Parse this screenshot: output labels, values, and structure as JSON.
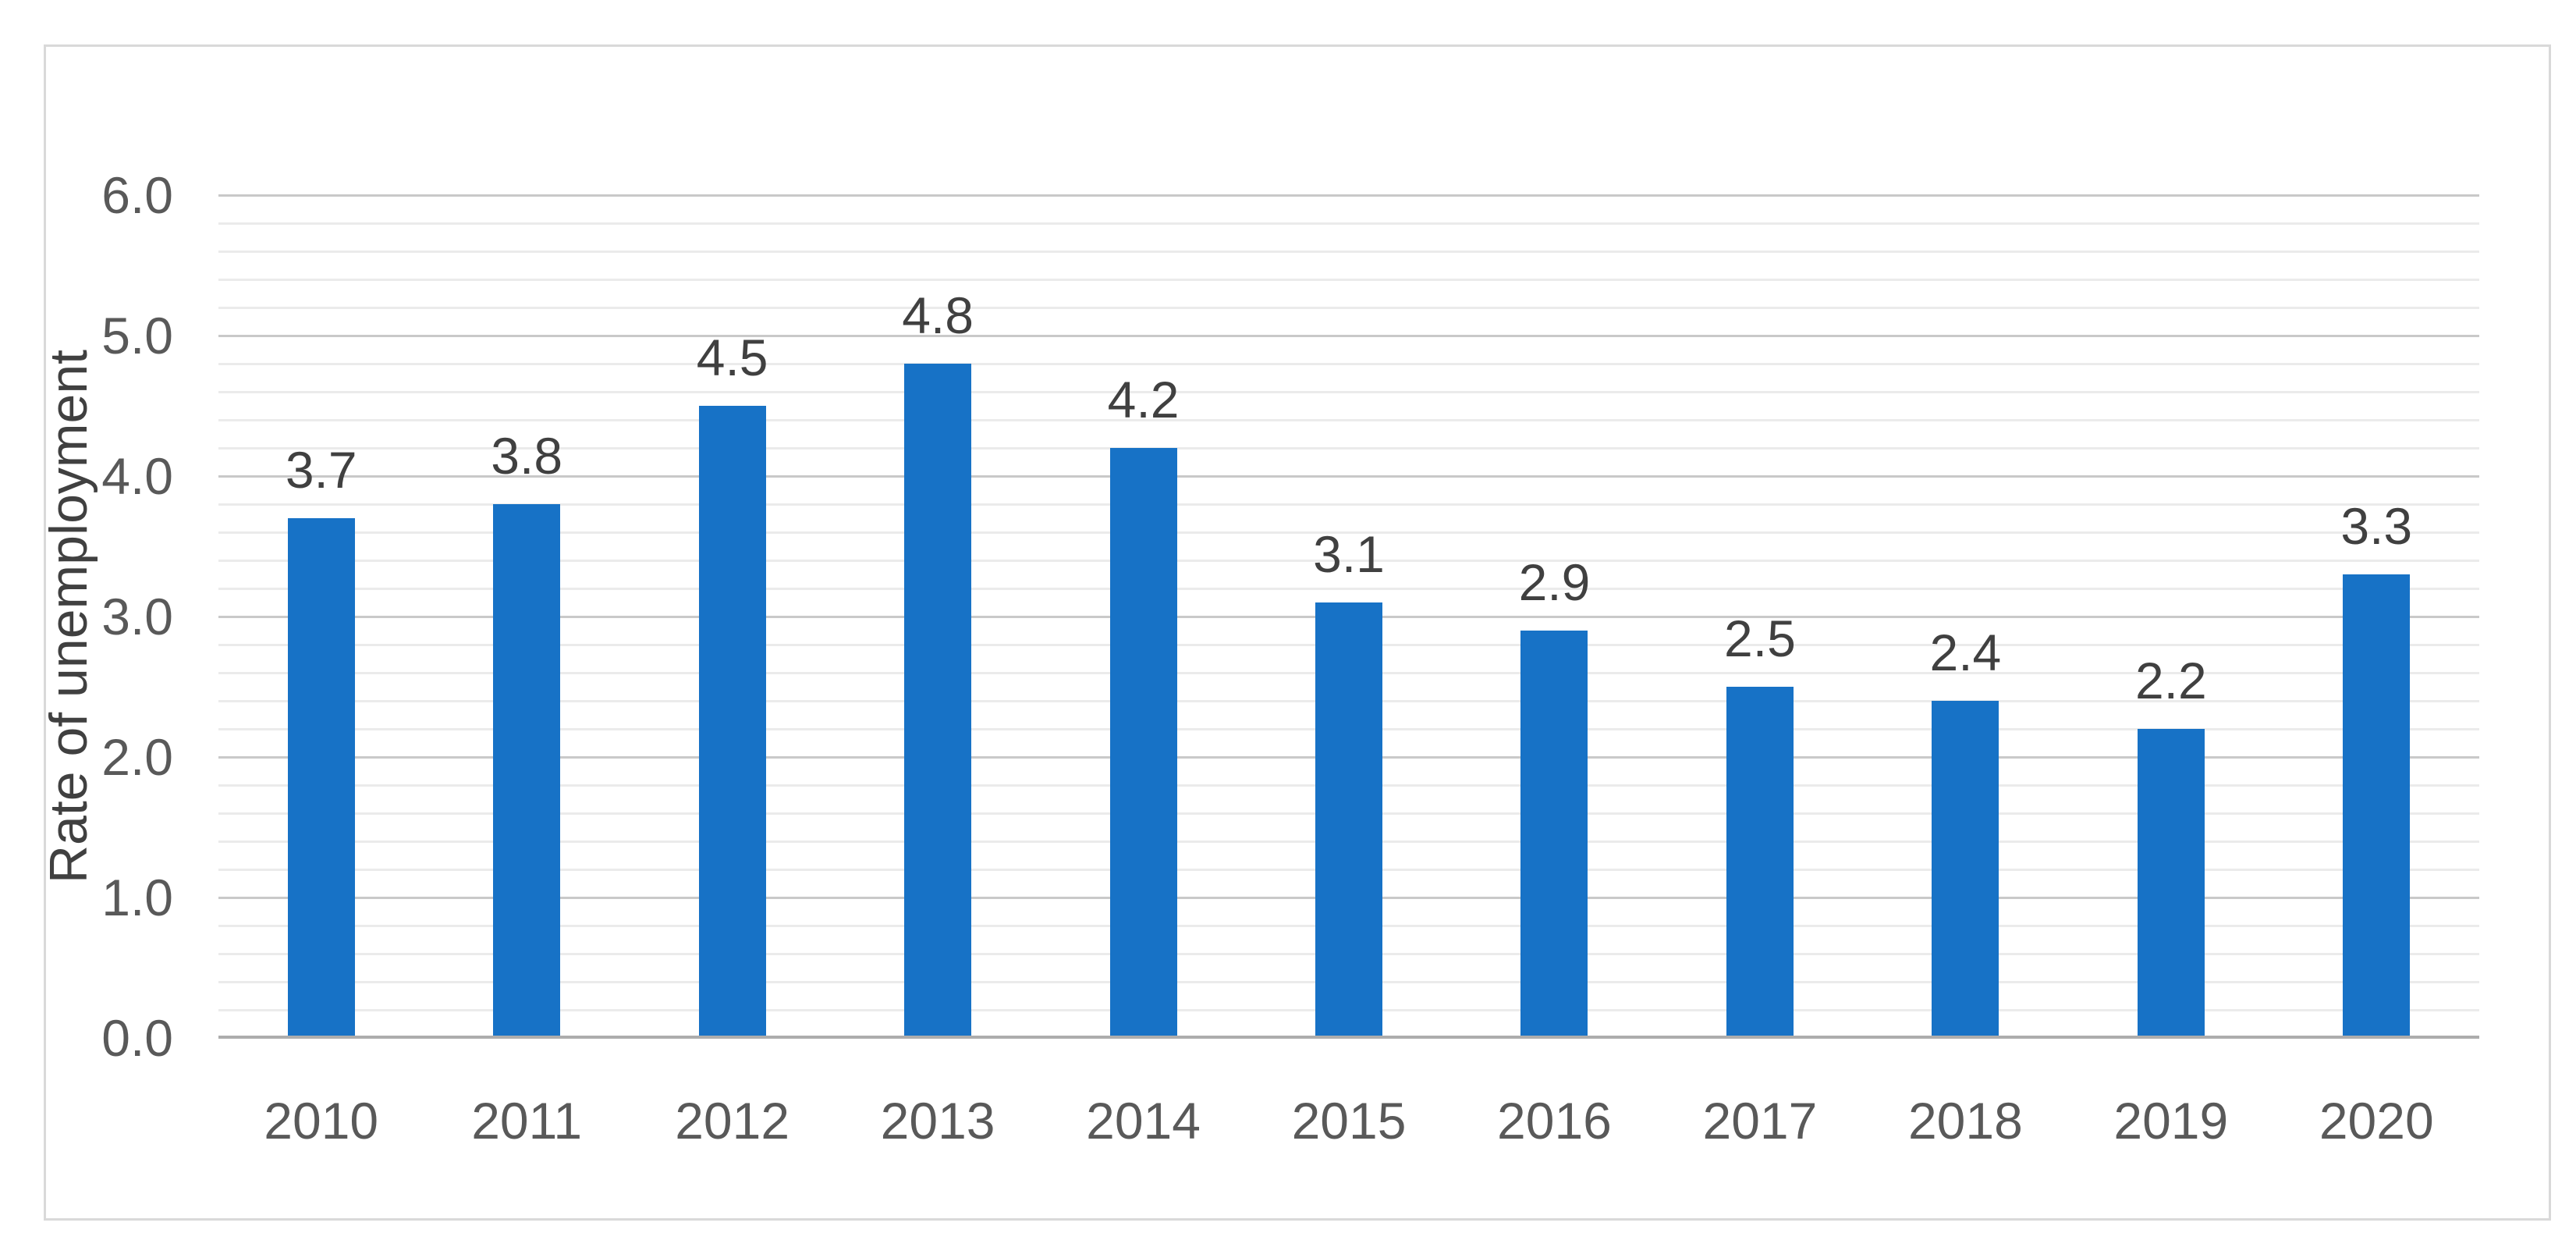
{
  "chart_data": {
    "type": "bar",
    "title": "",
    "categories": [
      "2010",
      "2011",
      "2012",
      "2013",
      "2014",
      "2015",
      "2016",
      "2017",
      "2018",
      "2019",
      "2020"
    ],
    "values": [
      3.7,
      3.8,
      4.5,
      4.8,
      4.2,
      3.1,
      2.9,
      2.5,
      2.4,
      2.2,
      3.3
    ],
    "value_labels": [
      "3.7",
      "3.8",
      "4.5",
      "4.8",
      "4.2",
      "3.1",
      "2.9",
      "2.5",
      "2.4",
      "2.2",
      "3.3"
    ],
    "xlabel": "",
    "ylabel": "Rate of unemployment",
    "ylim": [
      0,
      6
    ],
    "y_major_step": 1,
    "y_minor_step": 0.2,
    "y_tick_labels": [
      "0.0",
      "1.0",
      "2.0",
      "3.0",
      "4.0",
      "5.0",
      "6.0"
    ],
    "grid": "major-and-minor-horizontal",
    "legend": "none",
    "data_labels": "above-bars",
    "colors": {
      "bar": "#1772c6",
      "major_gridline": "#c9c9c9",
      "minor_gridline": "#ebebeb",
      "axis_line": "#adadad",
      "tick_text": "#595959",
      "label_text": "#404040",
      "frame_border": "#d9d9d9",
      "background": "#ffffff"
    }
  }
}
